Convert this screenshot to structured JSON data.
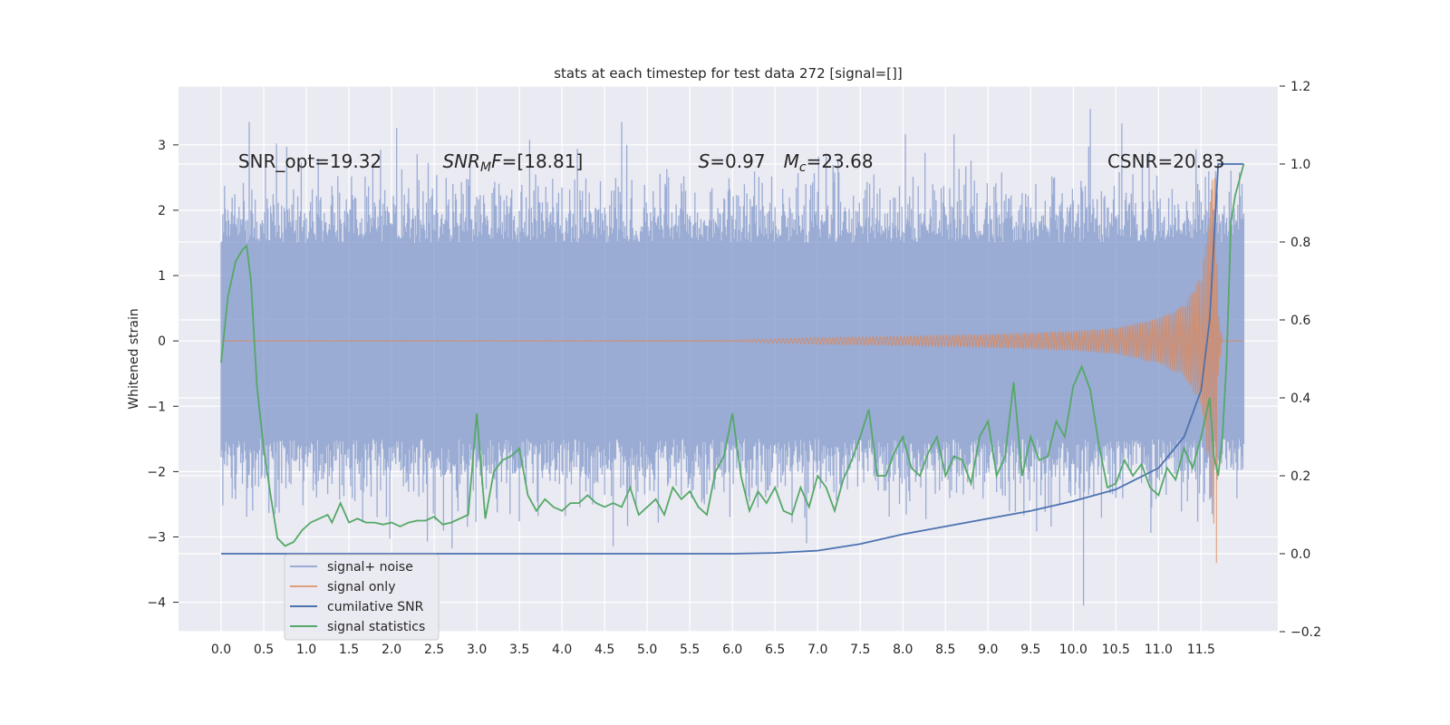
{
  "chart_data": {
    "type": "line",
    "title": "stats at each timestep for test data 272 [signal=[]]",
    "ylabel": "Whitened strain",
    "xlabel": "",
    "xlim": [
      -0.5,
      12.4
    ],
    "ylim": [
      -4.45,
      3.9
    ],
    "y2lim": [
      -0.2,
      1.2
    ],
    "x_ticks": [
      "0.0",
      "0.5",
      "1.0",
      "1.5",
      "2.0",
      "2.5",
      "3.0",
      "3.5",
      "4.0",
      "4.5",
      "5.0",
      "5.5",
      "6.0",
      "6.5",
      "7.0",
      "7.5",
      "8.0",
      "8.5",
      "9.0",
      "9.5",
      "10.0",
      "10.5",
      "11.0",
      "11.5"
    ],
    "y_ticks": [
      3,
      2,
      1,
      0,
      -1,
      -2,
      -3,
      -4
    ],
    "y_tick_labels": [
      "3",
      "2",
      "1",
      "0",
      "−1",
      "−2",
      "−3",
      "−4"
    ],
    "y2_ticks": [
      1.2,
      1.0,
      0.8,
      0.6,
      0.4,
      0.2,
      0.0,
      -0.2
    ],
    "y2_tick_labels": [
      "1.2",
      "1.0",
      "0.8",
      "0.6",
      "0.4",
      "0.2",
      "0.0",
      "−0.2"
    ],
    "grid": true,
    "legend_location": "lower-left",
    "annotations": [
      {
        "label": "SNR_opt",
        "value": "=19.32",
        "x": 0.2,
        "y": 2.75
      },
      {
        "label": "SNR_MF",
        "value": "=[18.81]",
        "x": 2.6,
        "y": 2.75
      },
      {
        "label": "S",
        "value": "=0.97",
        "x": 5.6,
        "y": 2.75
      },
      {
        "label": "M_c",
        "value": "=23.68",
        "x": 6.6,
        "y": 2.75
      },
      {
        "label": "CSNR",
        "value": "CSNR=20.83",
        "x": 10.4,
        "y": 2.75
      }
    ],
    "series": [
      {
        "name": "signal+ noise",
        "axis": "left",
        "color": "#7f97c9",
        "description_range": [
          0,
          12.0
        ],
        "band_core": [
          -1.5,
          1.5
        ],
        "spikes_max": [
          3.55,
          -4.05
        ]
      },
      {
        "name": "signal only",
        "axis": "left",
        "color": "#dd8452",
        "envelope_points": [
          [
            0.0,
            0.0
          ],
          [
            6.0,
            0.01
          ],
          [
            7.0,
            0.05
          ],
          [
            8.0,
            0.07
          ],
          [
            9.0,
            0.1
          ],
          [
            10.0,
            0.15
          ],
          [
            10.5,
            0.2
          ],
          [
            11.0,
            0.35
          ],
          [
            11.3,
            0.55
          ],
          [
            11.5,
            1.0
          ],
          [
            11.6,
            2.0
          ],
          [
            11.65,
            3.0
          ],
          [
            11.7,
            0.5
          ],
          [
            11.75,
            0.0
          ]
        ],
        "dip_min": -3.4
      },
      {
        "name": "cumilative SNR",
        "axis": "right",
        "color": "#4c72b0",
        "x": [
          0.0,
          6.0,
          6.5,
          7.0,
          7.5,
          8.0,
          8.5,
          9.0,
          9.5,
          10.0,
          10.5,
          11.0,
          11.3,
          11.5,
          11.6,
          11.65,
          11.7,
          11.8,
          12.0
        ],
        "y": [
          0.0,
          0.0,
          0.002,
          0.008,
          0.025,
          0.05,
          0.07,
          0.09,
          0.11,
          0.135,
          0.165,
          0.22,
          0.3,
          0.42,
          0.6,
          0.8,
          1.0,
          1.0,
          1.0
        ]
      },
      {
        "name": "signal statistics",
        "axis": "right",
        "color": "#55a868",
        "x": [
          0.0,
          0.08,
          0.17,
          0.25,
          0.3,
          0.35,
          0.42,
          0.5,
          0.58,
          0.66,
          0.75,
          0.85,
          0.95,
          1.05,
          1.15,
          1.25,
          1.3,
          1.4,
          1.5,
          1.6,
          1.7,
          1.8,
          1.9,
          2.0,
          2.1,
          2.2,
          2.3,
          2.4,
          2.5,
          2.6,
          2.7,
          2.8,
          2.9,
          3.0,
          3.1,
          3.2,
          3.3,
          3.4,
          3.5,
          3.6,
          3.7,
          3.8,
          3.9,
          4.0,
          4.1,
          4.2,
          4.3,
          4.4,
          4.5,
          4.6,
          4.7,
          4.8,
          4.9,
          5.0,
          5.1,
          5.2,
          5.3,
          5.4,
          5.5,
          5.6,
          5.7,
          5.8,
          5.9,
          6.0,
          6.1,
          6.2,
          6.3,
          6.4,
          6.5,
          6.6,
          6.7,
          6.8,
          6.9,
          7.0,
          7.1,
          7.2,
          7.3,
          7.4,
          7.5,
          7.6,
          7.7,
          7.8,
          7.9,
          8.0,
          8.1,
          8.2,
          8.3,
          8.4,
          8.5,
          8.6,
          8.7,
          8.8,
          8.9,
          9.0,
          9.1,
          9.2,
          9.3,
          9.4,
          9.5,
          9.6,
          9.7,
          9.8,
          9.9,
          10.0,
          10.1,
          10.2,
          10.3,
          10.4,
          10.5,
          10.6,
          10.7,
          10.8,
          10.9,
          11.0,
          11.1,
          11.2,
          11.3,
          11.4,
          11.5,
          11.55,
          11.6,
          11.65,
          11.7,
          11.75,
          11.8,
          11.85,
          11.9,
          12.0
        ],
        "y": [
          0.49,
          0.66,
          0.75,
          0.78,
          0.79,
          0.7,
          0.43,
          0.27,
          0.15,
          0.04,
          0.02,
          0.03,
          0.06,
          0.08,
          0.09,
          0.1,
          0.08,
          0.13,
          0.08,
          0.09,
          0.08,
          0.08,
          0.075,
          0.08,
          0.07,
          0.08,
          0.085,
          0.085,
          0.095,
          0.075,
          0.08,
          0.09,
          0.1,
          0.36,
          0.09,
          0.21,
          0.24,
          0.25,
          0.27,
          0.15,
          0.11,
          0.14,
          0.12,
          0.11,
          0.13,
          0.13,
          0.15,
          0.13,
          0.12,
          0.13,
          0.12,
          0.17,
          0.1,
          0.12,
          0.14,
          0.1,
          0.17,
          0.14,
          0.16,
          0.12,
          0.1,
          0.21,
          0.25,
          0.36,
          0.2,
          0.11,
          0.16,
          0.13,
          0.17,
          0.11,
          0.1,
          0.17,
          0.12,
          0.2,
          0.17,
          0.11,
          0.19,
          0.24,
          0.3,
          0.37,
          0.2,
          0.2,
          0.26,
          0.3,
          0.22,
          0.2,
          0.26,
          0.3,
          0.2,
          0.25,
          0.24,
          0.18,
          0.3,
          0.34,
          0.2,
          0.25,
          0.44,
          0.2,
          0.3,
          0.24,
          0.25,
          0.34,
          0.3,
          0.43,
          0.48,
          0.42,
          0.28,
          0.17,
          0.18,
          0.24,
          0.2,
          0.23,
          0.17,
          0.15,
          0.22,
          0.19,
          0.27,
          0.22,
          0.3,
          0.35,
          0.4,
          0.25,
          0.2,
          0.3,
          0.5,
          0.85,
          0.92,
          1.0
        ]
      }
    ]
  }
}
